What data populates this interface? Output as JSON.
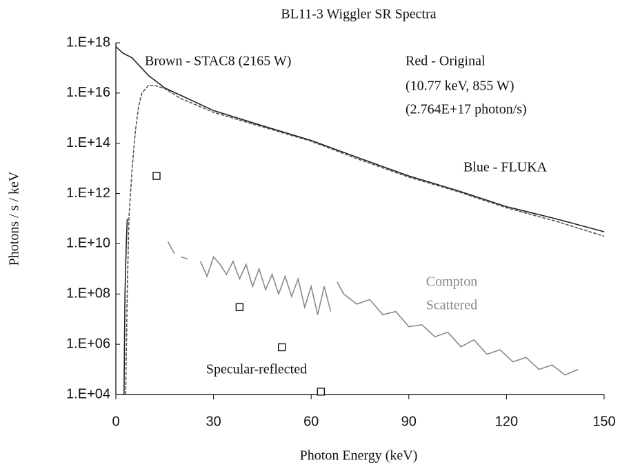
{
  "chart_data": {
    "type": "line",
    "title": "BL11-3 Wiggler SR Spectra",
    "xlabel": "Photon Energy (keV)",
    "ylabel": "Photons / s / keV",
    "xlim": [
      0,
      150
    ],
    "xticks": [
      0,
      30,
      60,
      90,
      120,
      150
    ],
    "ylim": [
      10000.0,
      1e+18
    ],
    "ylog": true,
    "yticks": [
      {
        "value": 10000.0,
        "label": "1.E+04"
      },
      {
        "value": 1000000.0,
        "label": "1.E+06"
      },
      {
        "value": 100000000.0,
        "label": "1.E+08"
      },
      {
        "value": 10000000000.0,
        "label": "1.E+10"
      },
      {
        "value": 1000000000000.0,
        "label": "1.E+12"
      },
      {
        "value": 100000000000000.0,
        "label": "1.E+14"
      },
      {
        "value": 1e+16,
        "label": "1.E+16"
      },
      {
        "value": 1e+18,
        "label": "1.E+18"
      }
    ],
    "annotations": [
      "Brown - STAC8 (2165 W)",
      "Red - Original",
      "(10.77 keV, 855 W)",
      "(2.764E+17 photon/s)",
      "Blue - FLUKA",
      "Compton",
      "Scattered",
      "Specular-reflected"
    ],
    "series": [
      {
        "color": "#2a1e18",
        "style": "solid",
        "x": [
          0,
          2,
          5,
          10,
          15,
          20,
          30,
          45,
          60,
          75,
          90,
          105,
          120,
          135,
          150
        ],
        "values": [
          7e+17,
          4e+17,
          2.5e+17,
          5e+16,
          1.6e+16,
          8000000000000000.0,
          2000000000000000.0,
          500000000000000.0,
          130000000000000.0,
          25000000000000.0,
          5000000000000.0,
          1300000000000.0,
          300000000000.0,
          100000000000.0,
          30000000000.0
        ]
      },
      {
        "color": "#555555",
        "style": "dashed",
        "x": [
          3,
          3.5,
          4,
          5,
          6,
          7,
          8,
          10,
          12,
          15,
          20,
          30,
          45,
          60,
          75,
          90,
          105,
          120,
          135,
          150
        ],
        "values": [
          10000.0,
          100000000.0,
          100000000000.0,
          10000000000000.0,
          300000000000000.0,
          3000000000000000.0,
          1e+16,
          2e+16,
          2e+16,
          1.5e+16,
          6000000000000000.0,
          1700000000000000.0,
          450000000000000.0,
          120000000000000.0,
          22000000000000.0,
          4500000000000.0,
          1200000000000.0,
          270000000000.0,
          80000000000.0,
          20000000000.0
        ]
      },
      {
        "color": "#222222",
        "style": "solid",
        "x": [
          2.5,
          2.8,
          3.2,
          3.5
        ],
        "values": [
          10000.0,
          100000000.0,
          10000000000.0,
          100000000000.0
        ]
      },
      {
        "color": "#888888",
        "style": "solid",
        "x": [
          16,
          18,
          19,
          20,
          22,
          24,
          26,
          28,
          30,
          32,
          34,
          36,
          38,
          40,
          42,
          44,
          46,
          48,
          50,
          52,
          54,
          56,
          58,
          60,
          62,
          64,
          66,
          67,
          68,
          70,
          74,
          78,
          82,
          86,
          90,
          94,
          98,
          102,
          106,
          110,
          114,
          118,
          122,
          126,
          130,
          134,
          138,
          142
        ],
        "values": [
          12000000000.0,
          4000000000.0,
          null,
          3000000000.0,
          2500000000.0,
          null,
          2000000000.0,
          500000000.0,
          3000000000.0,
          1500000000.0,
          600000000.0,
          2000000000.0,
          400000000.0,
          1500000000.0,
          200000000.0,
          1000000000.0,
          150000000.0,
          600000000.0,
          100000000.0,
          500000000.0,
          80000000.0,
          400000000.0,
          30000000.0,
          200000000.0,
          15000000.0,
          200000000.0,
          20000000.0,
          null,
          300000000.0,
          100000000.0,
          40000000.0,
          60000000.0,
          15000000.0,
          20000000.0,
          5000000.0,
          6000000.0,
          2000000.0,
          3000000.0,
          800000.0,
          1500000.0,
          400000.0,
          600000.0,
          200000.0,
          300000.0,
          100000.0,
          150000.0,
          60000.0,
          100000.0
        ]
      },
      {
        "color": "#111111",
        "style": "markers",
        "x": [
          12.5,
          38,
          51,
          63
        ],
        "values": [
          5000000000000.0,
          30000000.0,
          760000.0,
          13000.0
        ]
      }
    ]
  }
}
